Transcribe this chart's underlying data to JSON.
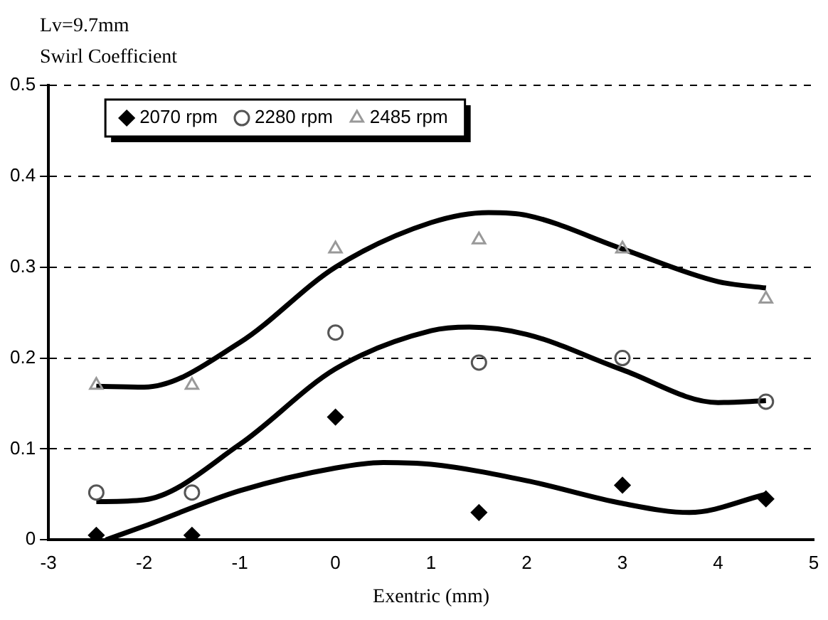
{
  "chart_data": {
    "type": "scatter",
    "title": "Lv=9.7mm",
    "ylabel": "Swirl Coefficient",
    "xlabel": "Exentric (mm)",
    "xlim": [
      -3,
      5
    ],
    "xticks": [
      -3,
      -2,
      -1,
      0,
      1,
      2,
      3,
      4,
      5
    ],
    "ylim": [
      0,
      0.5
    ],
    "yticks": [
      0,
      0.1,
      0.2,
      0.3,
      0.4,
      0.5
    ],
    "grid": "y",
    "legend": "top left",
    "series": [
      {
        "name": "2070 rpm",
        "color": "#000000",
        "marker": "diamond",
        "x": [
          -2.5,
          -1.5,
          0,
          1.5,
          3,
          4.5
        ],
        "values": [
          0.005,
          0.005,
          0.135,
          0.03,
          0.06,
          0.045
        ]
      },
      {
        "name": "2280 rpm",
        "color": "#555555",
        "marker": "circle",
        "x": [
          -2.5,
          -1.5,
          0,
          1.5,
          3,
          4.5
        ],
        "values": [
          0.052,
          0.052,
          0.228,
          0.195,
          0.2,
          0.152
        ]
      },
      {
        "name": "2485 rpm",
        "color": "#999999",
        "marker": "triangle",
        "x": [
          -2.5,
          -1.5,
          0,
          1.5,
          3,
          4.5
        ],
        "values": [
          0.17,
          0.17,
          0.32,
          0.33,
          0.32,
          0.265
        ]
      },
      {
        "type": "line",
        "color": "#000000",
        "marker": "none",
        "x": [
          -2.4,
          -2,
          -1,
          0,
          0.5,
          1,
          2,
          3,
          3.7,
          4.5
        ],
        "values": [
          0,
          0.015,
          0.054,
          0.079,
          0.085,
          0.083,
          0.065,
          0.04,
          0.03,
          0.05
        ]
      },
      {
        "type": "line",
        "color": "#000000",
        "marker": "none",
        "x": [
          -2.5,
          -2,
          -1,
          0,
          1,
          1.4,
          2,
          3,
          4,
          4.5
        ],
        "values": [
          0.042,
          0.044,
          0.105,
          0.188,
          0.23,
          0.234,
          0.226,
          0.187,
          0.151,
          0.153
        ]
      },
      {
        "type": "line",
        "color": "#000000",
        "marker": "none",
        "x": [
          -2.5,
          -2,
          -1,
          0,
          1,
          1.6,
          2,
          3,
          4,
          4.5
        ],
        "values": [
          0.169,
          0.168,
          0.217,
          0.3,
          0.349,
          0.36,
          0.357,
          0.32,
          0.284,
          0.277
        ]
      }
    ]
  }
}
